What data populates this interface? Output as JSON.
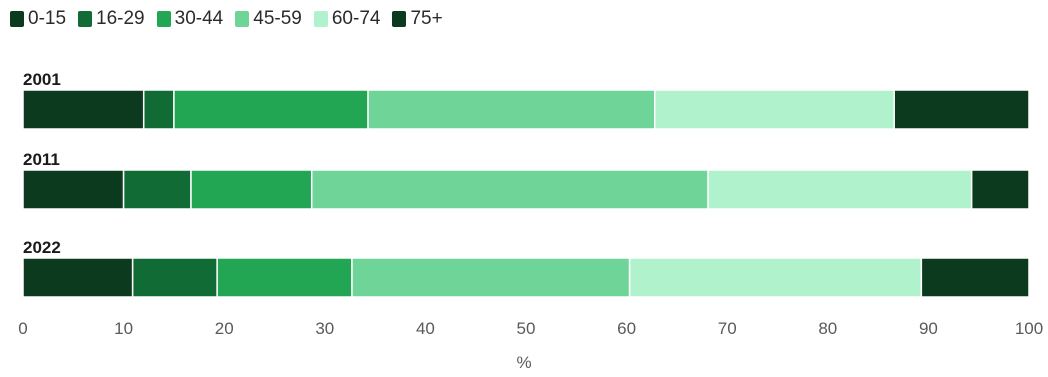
{
  "chart_data": {
    "type": "bar",
    "orientation": "horizontal",
    "stacked": true,
    "categories": [
      "2001",
      "2011",
      "2022"
    ],
    "series": [
      {
        "name": "0-15",
        "color": "#0b3a1f",
        "values": [
          12.0,
          10.0,
          10.9
        ]
      },
      {
        "name": "16-29",
        "color": "#116b34",
        "values": [
          3.0,
          6.7,
          8.4
        ]
      },
      {
        "name": "30-44",
        "color": "#22a654",
        "values": [
          19.3,
          12.0,
          13.4
        ]
      },
      {
        "name": "45-59",
        "color": "#6fd498",
        "values": [
          28.5,
          39.4,
          27.6
        ]
      },
      {
        "name": "60-74",
        "color": "#aff2cb",
        "values": [
          23.8,
          26.2,
          29.0
        ]
      },
      {
        "name": "75+",
        "color": "#0b3a1f",
        "values": [
          13.4,
          5.7,
          10.7
        ]
      }
    ],
    "xlim": [
      0,
      100
    ],
    "xticks": [
      0,
      10,
      20,
      30,
      40,
      50,
      60,
      70,
      80,
      90,
      100
    ],
    "xlabel": "%",
    "grid": false,
    "legend_position": "top-left"
  }
}
